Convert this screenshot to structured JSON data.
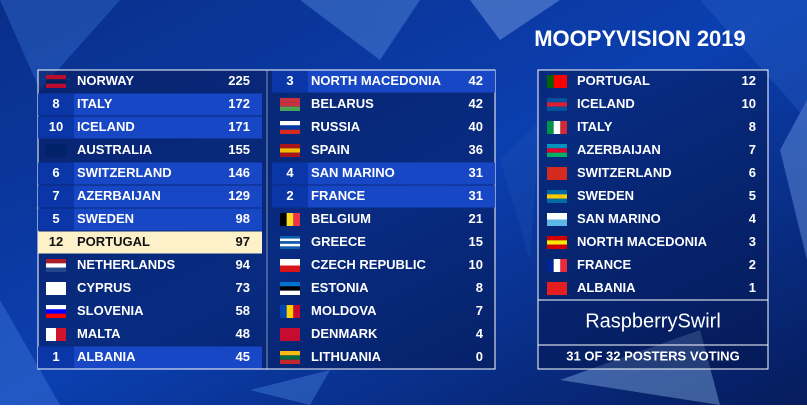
{
  "title": "MOOPYVISION 2019",
  "table": {
    "columns": [
      {
        "rows": [
          {
            "country": "NORWAY",
            "score": 225
          },
          {
            "points": 8,
            "country": "ITALY",
            "score": 172
          },
          {
            "points": 10,
            "country": "ICELAND",
            "score": 171
          },
          {
            "country": "AUSTRALIA",
            "score": 155
          },
          {
            "points": 6,
            "country": "SWITZERLAND",
            "score": 146
          },
          {
            "points": 7,
            "country": "AZERBAIJAN",
            "score": 129
          },
          {
            "points": 5,
            "country": "SWEDEN",
            "score": 98
          },
          {
            "points": 12,
            "country": "PORTUGAL",
            "score": 97
          },
          {
            "country": "NETHERLANDS",
            "score": 94
          },
          {
            "country": "CYPRUS",
            "score": 73
          },
          {
            "country": "SLOVENIA",
            "score": 58
          },
          {
            "country": "MALTA",
            "score": 48
          },
          {
            "points": 1,
            "country": "ALBANIA",
            "score": 45
          }
        ]
      },
      {
        "rows": [
          {
            "points": 3,
            "country": "NORTH MACEDONIA",
            "score": 42
          },
          {
            "country": "BELARUS",
            "score": 42
          },
          {
            "country": "RUSSIA",
            "score": 40
          },
          {
            "country": "SPAIN",
            "score": 36
          },
          {
            "points": 4,
            "country": "SAN MARINO",
            "score": 31
          },
          {
            "points": 2,
            "country": "FRANCE",
            "score": 31
          },
          {
            "country": "BELGIUM",
            "score": 21
          },
          {
            "country": "GREECE",
            "score": 15
          },
          {
            "country": "CZECH REPUBLIC",
            "score": 10
          },
          {
            "country": "ESTONIA",
            "score": 8
          },
          {
            "country": "MOLDOVA",
            "score": 7
          },
          {
            "country": "DENMARK",
            "score": 4
          },
          {
            "country": "LITHUANIA",
            "score": 0
          }
        ]
      }
    ]
  },
  "scoreboard": {
    "rows": [
      {
        "country": "PORTUGAL",
        "points": 12
      },
      {
        "country": "ICELAND",
        "points": 10
      },
      {
        "country": "ITALY",
        "points": 8
      },
      {
        "country": "AZERBAIJAN",
        "points": 7
      },
      {
        "country": "SWITZERLAND",
        "points": 6
      },
      {
        "country": "SWEDEN",
        "points": 5
      },
      {
        "country": "SAN MARINO",
        "points": 4
      },
      {
        "country": "NORTH MACEDONIA",
        "points": 3
      },
      {
        "country": "FRANCE",
        "points": 2
      },
      {
        "country": "ALBANIA",
        "points": 1
      }
    ],
    "voter": "RaspberrySwirl",
    "footer": "31 OF 32 POSTERS VOTING"
  }
}
